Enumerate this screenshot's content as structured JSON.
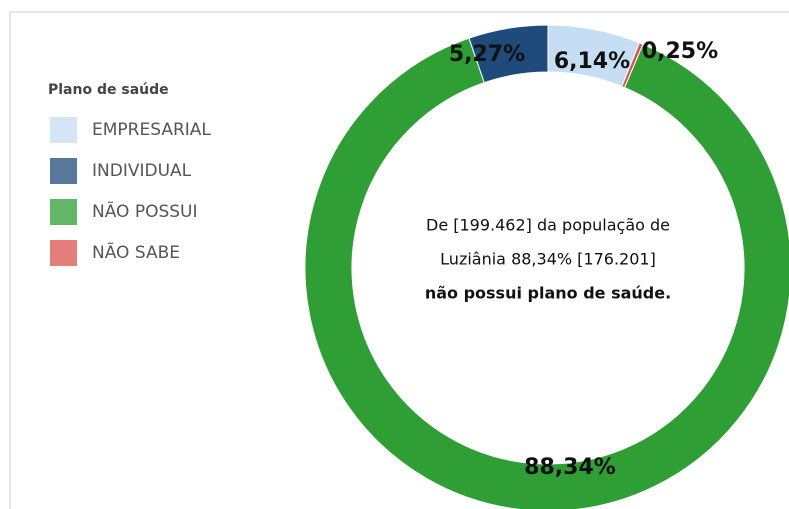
{
  "chart_data": {
    "type": "donut",
    "legend_title": "Plano de saúde",
    "categories": [
      "EMPRESARIAL",
      "INDIVIDUAL",
      "NÃO POSSUI",
      "NÃO SABE"
    ],
    "values": [
      6.14,
      5.27,
      88.34,
      0.25
    ],
    "value_labels": [
      "6,14%",
      "5,27%",
      "88,34%",
      "0,25%"
    ],
    "colors": [
      "#c5def3",
      "#1f4a7c",
      "#2e9e35",
      "#d9534f"
    ],
    "annotation": [
      "De [199.462] da população de",
      "Luziânia 88,34% [176.201]",
      "não possui plano de saúde."
    ],
    "legend": "left"
  }
}
